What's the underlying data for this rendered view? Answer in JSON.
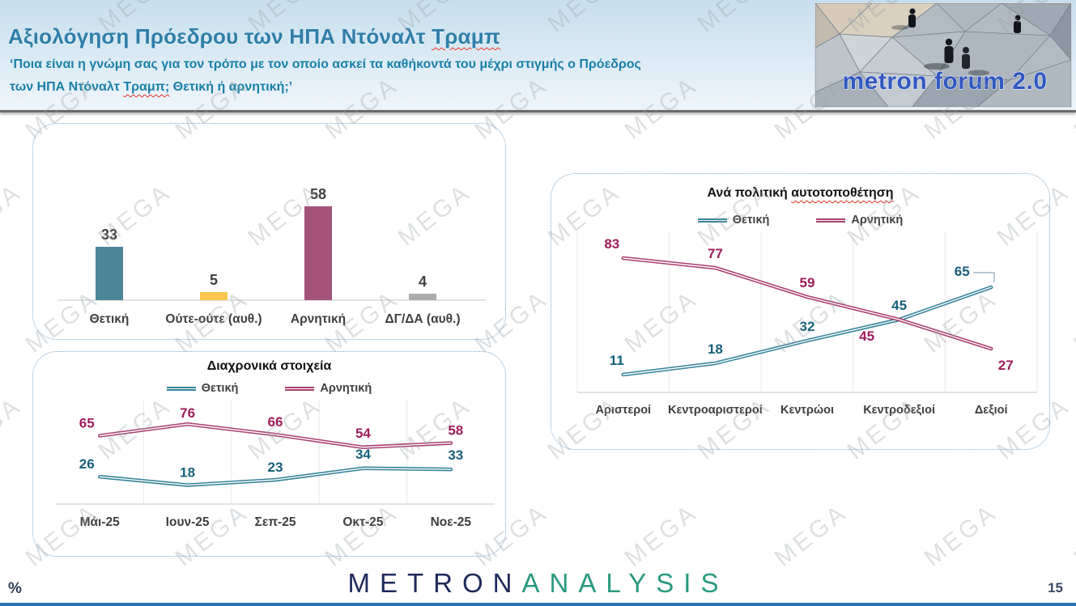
{
  "watermark": "MEGA",
  "header": {
    "title_plain": "Αξιολόγηση Πρόεδρου των ΗΠΑ Ντόναλτ ",
    "title_wavy": "Τραμπ",
    "subtitle_line1": "‘Ποια είναι η γνώμη σας για τον τρόπο με τον οποίο ασκεί τα καθήκοντά του μέχρι στιγμής ο Πρόεδρος",
    "subtitle_line2_p1": "των ΗΠΑ Ντόναλτ ",
    "subtitle_line2_wavy": "Τραμπ;",
    "subtitle_line2_p2": " Θετική ή αρνητική;’",
    "photo_caption": "metron forum 2.0"
  },
  "footer": {
    "logo_metron": "METRON",
    "logo_analysis": "ANALYSIS",
    "percent": "%",
    "page_number": "15"
  },
  "chart_data": [
    {
      "id": "overall_rating",
      "type": "bar",
      "categories": [
        "Θετική",
        "Ούτε-ούτε (αυθ.)",
        "Αρνητική",
        "ΔΓ/ΔΑ (αυθ.)"
      ],
      "values": [
        33,
        5,
        58,
        4
      ],
      "colors": [
        "#4C8698",
        "#FBC550",
        "#A4537B",
        "#ACACAC"
      ],
      "value_label_color": "#3F3F3F",
      "category_label_color": "#3F3F3F",
      "ylim": [
        0,
        100
      ],
      "grid": false,
      "legend": "none"
    },
    {
      "id": "timeline",
      "type": "line",
      "title": "Διαχρονικά στοιχεία",
      "categories": [
        "Μάι-25",
        "Ιουν-25",
        "Σεπ-25",
        "Οκτ-25",
        "Νοε-25"
      ],
      "series": [
        {
          "name": "Θετική",
          "values": [
            26,
            18,
            23,
            34,
            33
          ],
          "color": "#35839A",
          "label_color": "#17607A"
        },
        {
          "name": "Αρνητική",
          "values": [
            65,
            76,
            66,
            54,
            58
          ],
          "color": "#A93F6F",
          "label_color": "#9E1C5C"
        }
      ],
      "ylim": [
        0,
        100
      ],
      "grid": true,
      "legend_position": "top"
    },
    {
      "id": "by_political_self_placement",
      "type": "line",
      "title_plain": "Ανά πολιτική ",
      "title_wavy": "αυτοτοποθέτηση",
      "categories": [
        "Αριστεροί",
        "Κεντροαριστεροί",
        "Κεντρώοι",
        "Κεντροδεξιοί",
        "Δεξιοί"
      ],
      "series": [
        {
          "name": "Θετική",
          "values": [
            11,
            18,
            32,
            45,
            65
          ],
          "color": "#35839A",
          "label_color": "#17607A"
        },
        {
          "name": "Αρνητική",
          "values": [
            83,
            77,
            59,
            45,
            27
          ],
          "color": "#A93F6F",
          "label_color": "#9E1C5C"
        }
      ],
      "ylim": [
        0,
        100
      ],
      "grid": true,
      "legend_position": "top"
    }
  ]
}
